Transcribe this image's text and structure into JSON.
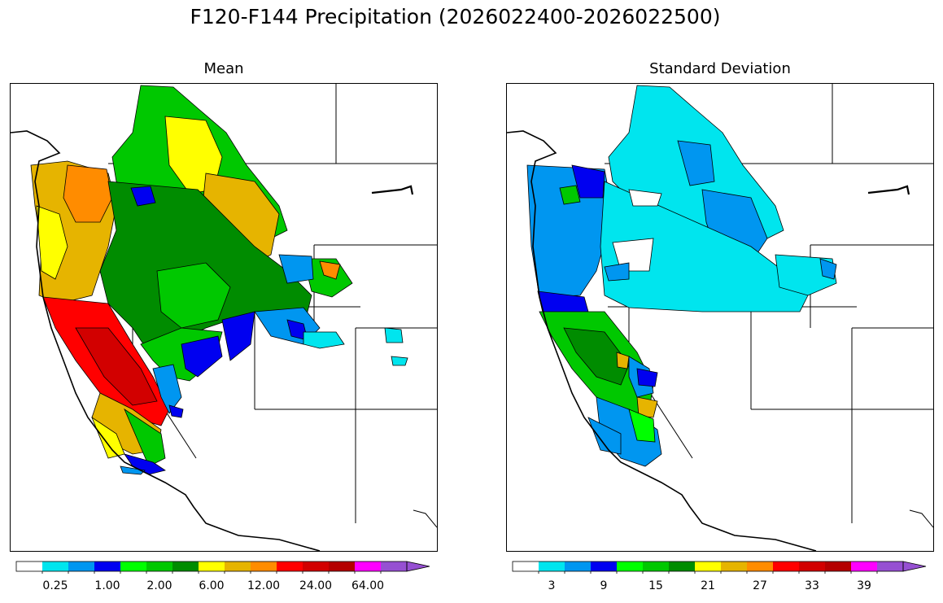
{
  "title": "F120-F144 Precipitation (2026022400-2026022500)",
  "panels": [
    {
      "title": "Mean",
      "colorbar": {
        "colors": [
          "#ffffff",
          "#00e5ee",
          "#0096f0",
          "#0000f0",
          "#00ff00",
          "#00c800",
          "#008c00",
          "#ffff00",
          "#e6b400",
          "#ff8c00",
          "#ff0000",
          "#d20000",
          "#b40000",
          "#ff00ff",
          "#9650d2"
        ],
        "tick_labels": [
          "0.25",
          "1.00",
          "2.00",
          "6.00",
          "12.00",
          "24.00",
          "64.00"
        ],
        "extend": "max"
      }
    },
    {
      "title": "Standard Deviation",
      "colorbar": {
        "colors": [
          "#ffffff",
          "#00e5ee",
          "#0096f0",
          "#0000f0",
          "#00ff00",
          "#00c800",
          "#008c00",
          "#ffff00",
          "#e6b400",
          "#ff8c00",
          "#ff0000",
          "#d20000",
          "#b40000",
          "#ff00ff",
          "#9650d2"
        ],
        "tick_labels": [
          "3",
          "9",
          "15",
          "21",
          "27",
          "33",
          "39"
        ],
        "extend": "max"
      }
    }
  ]
}
